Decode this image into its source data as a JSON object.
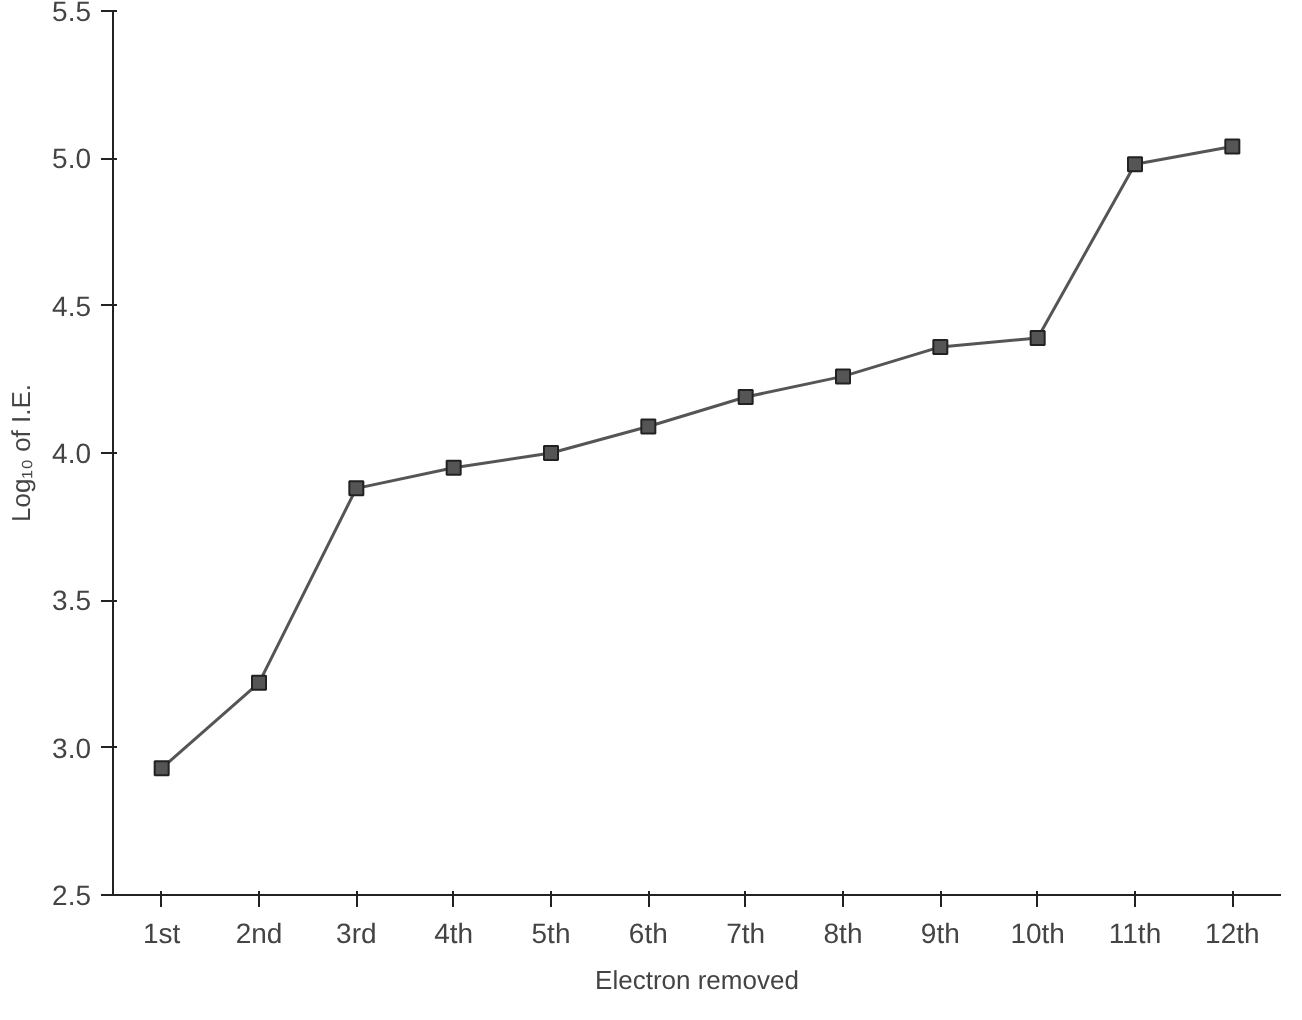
{
  "chart_data": {
    "type": "line",
    "xlabel": "Electron removed",
    "ylabel": "Log₁₀ of I.E.",
    "categories": [
      "1st",
      "2nd",
      "3rd",
      "4th",
      "5th",
      "6th",
      "7th",
      "8th",
      "9th",
      "10th",
      "11th",
      "12th"
    ],
    "series": [
      {
        "color": "#555555",
        "values": [
          2.93,
          3.22,
          3.88,
          3.95,
          4.0,
          4.09,
          4.19,
          4.26,
          4.36,
          4.39,
          4.98,
          5.04
        ]
      }
    ],
    "ylim": [
      2.5,
      5.5
    ],
    "yticks": [
      2.5,
      {
        "value": 3,
        "label": "3.0"
      },
      3.5,
      {
        "value": 4,
        "label": "4.0"
      },
      4.5,
      {
        "value": 5,
        "label": "5.0"
      },
      5.5
    ],
    "grid": false,
    "marker": "square",
    "line_style": "solid"
  }
}
